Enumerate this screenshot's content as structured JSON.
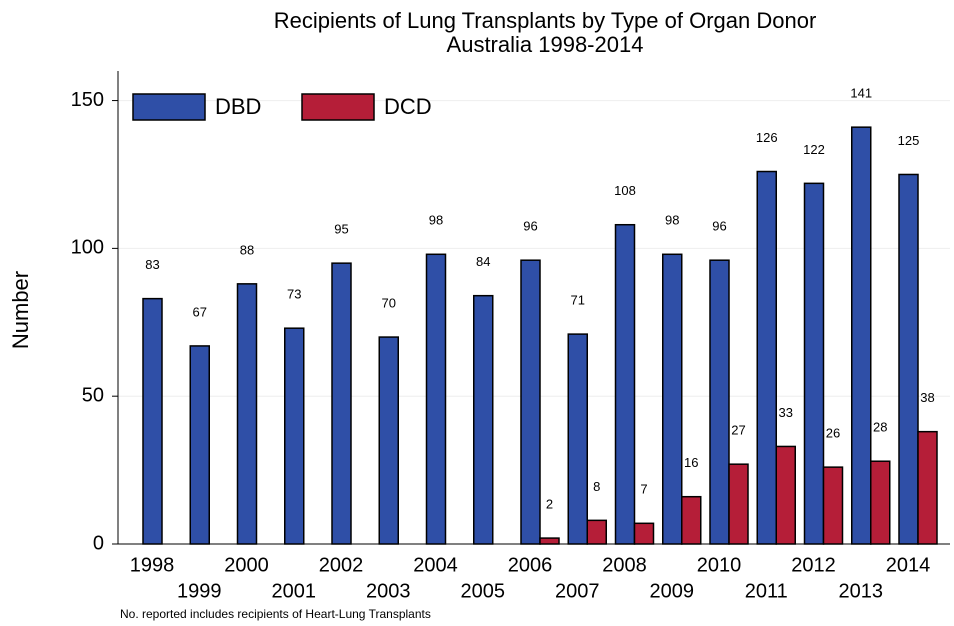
{
  "chart_data": {
    "type": "bar",
    "title": "Recipients of Lung Transplants by Type of Organ Donor",
    "subtitle": "Australia 1998-2014",
    "y_label": "Number",
    "note": "No. reported includes recipients of Heart-Lung Transplants",
    "categories": [
      "1998",
      "1999",
      "2000",
      "2001",
      "2002",
      "2003",
      "2004",
      "2005",
      "2006",
      "2007",
      "2008",
      "2009",
      "2010",
      "2011",
      "2012",
      "2013",
      "2014"
    ],
    "series": [
      {
        "name": "DBD",
        "color": "#2f4fa7",
        "values": [
          83,
          67,
          88,
          73,
          95,
          70,
          98,
          84,
          96,
          71,
          108,
          98,
          96,
          126,
          122,
          141,
          125
        ]
      },
      {
        "name": "DCD",
        "color": "#b51e38",
        "values": [
          null,
          null,
          null,
          null,
          null,
          null,
          null,
          null,
          2,
          8,
          7,
          16,
          27,
          33,
          26,
          28,
          38
        ]
      }
    ],
    "ylim": [
      0,
      160
    ],
    "yticks": [
      0,
      50,
      100,
      150
    ],
    "grid": true,
    "legend": "top-left"
  }
}
